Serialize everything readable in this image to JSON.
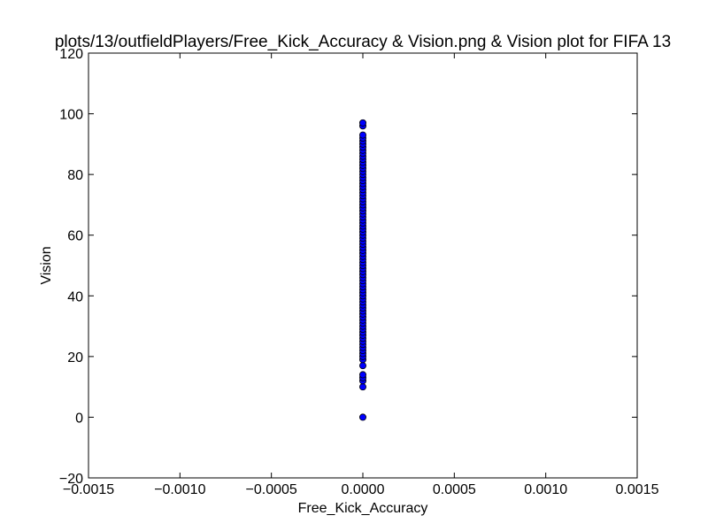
{
  "chart_data": {
    "type": "scatter",
    "title": "plots/13/outfieldPlayers/Free_Kick_Accuracy & Vision.png & Vision plot for FIFA 13",
    "xlabel": "Free_Kick_Accuracy",
    "ylabel": "Vision",
    "xlim": [
      -0.0015,
      0.0015
    ],
    "ylim": [
      -20,
      120
    ],
    "xticks": [
      -0.0015,
      -0.001,
      -0.0005,
      0,
      0.0005,
      0.001,
      0.0015
    ],
    "xtick_labels": [
      "−0.0015",
      "−0.0010",
      "−0.0005",
      "0.0000",
      "0.0005",
      "0.0010",
      "0.0015"
    ],
    "yticks": [
      -20,
      0,
      20,
      40,
      60,
      80,
      100,
      120
    ],
    "ytick_labels": [
      "−20",
      "0",
      "20",
      "40",
      "60",
      "80",
      "100",
      "120"
    ],
    "grid": false,
    "marker_color": "#0000ff",
    "marker_edge_color": "#000000",
    "x": [
      0,
      0,
      0,
      0,
      0,
      0,
      0,
      0,
      0,
      0,
      0,
      0,
      0,
      0,
      0,
      0,
      0,
      0,
      0,
      0,
      0,
      0,
      0,
      0,
      0,
      0,
      0,
      0,
      0,
      0,
      0,
      0,
      0,
      0,
      0,
      0,
      0,
      0,
      0,
      0,
      0,
      0,
      0,
      0,
      0,
      0,
      0,
      0,
      0,
      0,
      0,
      0,
      0,
      0,
      0,
      0,
      0,
      0,
      0,
      0,
      0,
      0,
      0,
      0,
      0,
      0,
      0,
      0,
      0,
      0,
      0,
      0,
      0,
      0,
      0,
      0,
      0,
      0,
      0,
      0,
      0,
      0,
      0
    ],
    "y": [
      0,
      10,
      12,
      13,
      14,
      17,
      19,
      20,
      21,
      22,
      23,
      24,
      25,
      26,
      27,
      28,
      29,
      30,
      31,
      32,
      33,
      34,
      35,
      36,
      37,
      38,
      39,
      40,
      41,
      42,
      43,
      44,
      45,
      46,
      47,
      48,
      49,
      50,
      51,
      52,
      53,
      54,
      55,
      56,
      57,
      58,
      59,
      60,
      61,
      62,
      63,
      64,
      65,
      66,
      67,
      68,
      69,
      70,
      71,
      72,
      73,
      74,
      75,
      76,
      77,
      78,
      79,
      80,
      81,
      82,
      83,
      84,
      85,
      86,
      87,
      88,
      89,
      90,
      91,
      92,
      93,
      96,
      97
    ]
  }
}
